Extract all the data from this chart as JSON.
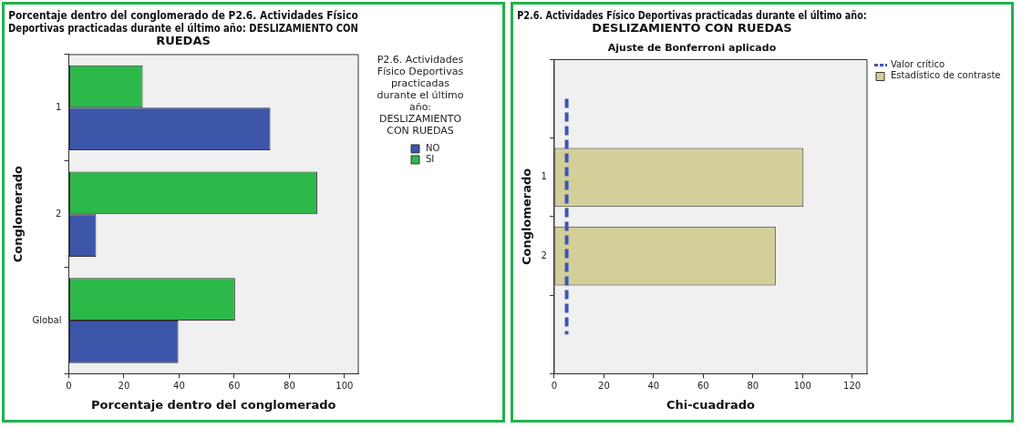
{
  "chart_data": [
    {
      "type": "bar",
      "orientation": "horizontal",
      "title": "Porcentaje dentro del conglomerado de P2.6. Actividades Físico Deportivas practicadas durante el último año: DESLIZAMIENTO CON RUEDAS",
      "xlabel": "Porcentaje dentro del conglomerado",
      "ylabel": "Conglomerado",
      "legend_title": "P2.6. Actividades Físico Deportivas practicadas durante el último año: DESLIZAMIENTO CON RUEDAS",
      "categories": [
        "1",
        "2",
        "Global"
      ],
      "series": [
        {
          "name": "NO",
          "color": "#3b55a8",
          "values": [
            73.1,
            9.9,
            39.7
          ]
        },
        {
          "name": "SI",
          "color": "#2db84a",
          "values": [
            26.8,
            90.1,
            60.3
          ]
        }
      ],
      "xlim": [
        0,
        105
      ],
      "xticks": [
        0,
        20,
        40,
        60,
        80,
        100
      ],
      "legend": "right"
    },
    {
      "type": "bar",
      "orientation": "horizontal",
      "title": "P2.6. Actividades Físico Deportivas practicadas durante el último año: DESLIZAMIENTO CON RUEDAS",
      "subtitle": "Ajuste de Bonferroni aplicado",
      "xlabel": "Chi-cuadrado",
      "ylabel": "Conglomerado",
      "categories": [
        null,
        "1",
        "2",
        null
      ],
      "series": [
        {
          "name": "Estadístico de contraste",
          "color": "#d3cf98",
          "values": [
            null,
            100.4,
            89.2,
            null
          ]
        }
      ],
      "xlim": [
        0,
        126
      ],
      "xticks": [
        0,
        20,
        40,
        60,
        80,
        100,
        120
      ],
      "ref_lines": [
        {
          "axis": "x",
          "value": 5,
          "label": "Valor crítico",
          "color": "#3d55b5",
          "line_style": "dashed"
        }
      ],
      "legend": "right"
    }
  ]
}
